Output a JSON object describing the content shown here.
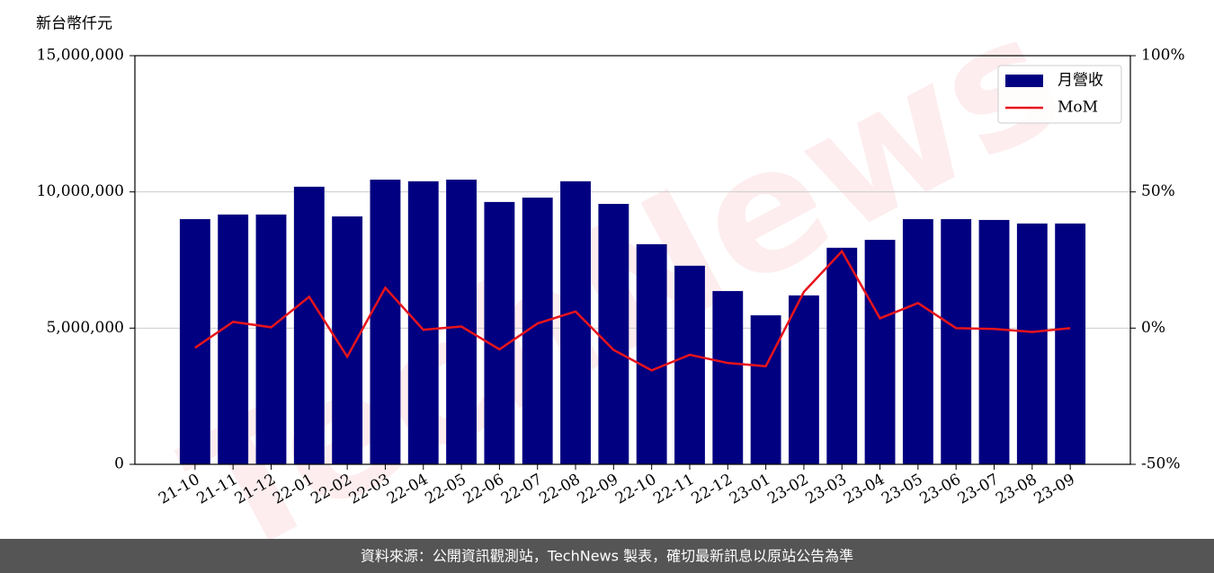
{
  "chart_data": {
    "type": "bar_line",
    "y_label": "新台幣仟元",
    "watermark": "TechNews",
    "source": "資料來源：公開資訊觀測站，TechNews 製表，確切最新訊息以原站公告為準",
    "categories": [
      "21-10",
      "21-11",
      "21-12",
      "22-01",
      "22-02",
      "22-03",
      "22-04",
      "22-05",
      "22-06",
      "22-07",
      "22-08",
      "22-09",
      "22-10",
      "22-11",
      "22-12",
      "23-01",
      "23-02",
      "23-03",
      "23-04",
      "23-05",
      "23-06",
      "23-07",
      "23-08",
      "23-09"
    ],
    "series": [
      {
        "name": "月營收",
        "type": "bar",
        "color": "#000080",
        "values": [
          9000000,
          9170000,
          9170000,
          10190000,
          9100000,
          10450000,
          10390000,
          10450000,
          9630000,
          9790000,
          10390000,
          9560000,
          8080000,
          7290000,
          6360000,
          5470000,
          6200000,
          7950000,
          8240000,
          9000000,
          9000000,
          8970000,
          8840000,
          8840000
        ]
      },
      {
        "name": "MoM",
        "type": "line",
        "axis": "y2",
        "color": "#e8141c",
        "values": [
          -7.2,
          2.3,
          0.3,
          11.5,
          -10.5,
          14.8,
          -0.6,
          0.6,
          -7.8,
          1.7,
          6.1,
          -8.0,
          -15.5,
          -9.8,
          -12.8,
          -14.0,
          13.3,
          28.2,
          3.6,
          9.2,
          0,
          -0.3,
          -1.4,
          0
        ]
      }
    ],
    "ylim": [
      0,
      15000000
    ],
    "yticks": [
      {
        "value": 0,
        "label": "0"
      },
      {
        "value": 5000000,
        "label": "5,000,000"
      },
      {
        "value": 10000000,
        "label": "10,000,000"
      },
      {
        "value": 15000000,
        "label": "15,000,000"
      }
    ],
    "y2lim": [
      -50,
      100
    ],
    "y2ticks": [
      {
        "value": -50,
        "label": "-50%"
      },
      {
        "value": 0,
        "label": "0%"
      },
      {
        "value": 50,
        "label": "50%"
      },
      {
        "value": 100,
        "label": "100%"
      }
    ],
    "grid": true,
    "legend": "upper right"
  }
}
